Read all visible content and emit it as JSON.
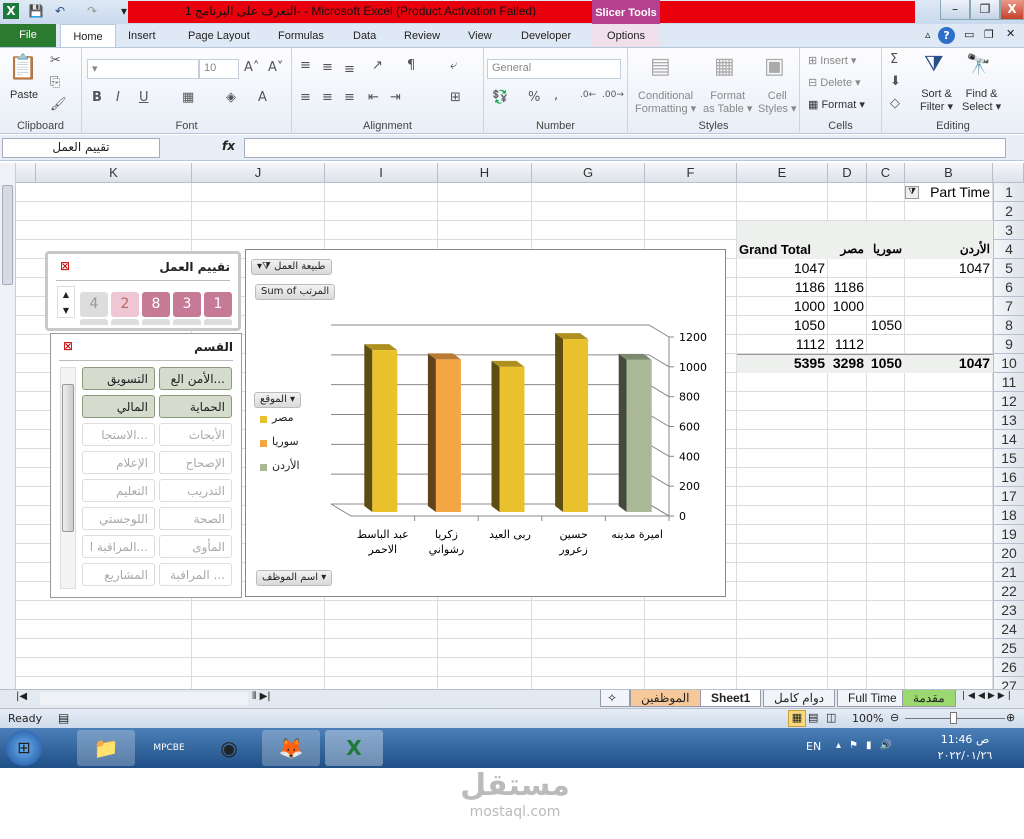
{
  "window": {
    "title": "التعرف على البرنامج 1-  -  Microsoft Excel (Product Activation Failed)",
    "context_tab": "Slicer Tools",
    "minimize": "–",
    "restore": "❐",
    "close": "X"
  },
  "ribbon": {
    "file_tab": "File",
    "tabs": [
      "Home",
      "Insert",
      "Page Layout",
      "Formulas",
      "Data",
      "Review",
      "View",
      "Developer",
      "Options"
    ],
    "groups": {
      "clipboard": "Clipboard",
      "font": "Font",
      "alignment": "Alignment",
      "number": "Number",
      "styles": "Styles",
      "cells": "Cells",
      "editing": "Editing"
    },
    "paste": "Paste",
    "font_size": "10",
    "number_format": "General",
    "conditional": [
      "Conditional",
      "Formatting ▾"
    ],
    "format_table": [
      "Format",
      "as Table ▾"
    ],
    "cell_styles": [
      "Cell",
      "Styles ▾"
    ],
    "insert": "Insert ▾",
    "delete": "Delete ▾",
    "format": "Format ▾",
    "sort": [
      "Sort &",
      "Filter ▾"
    ],
    "find": [
      "Find &",
      "Select ▾"
    ],
    "bold": "B",
    "italic": "I",
    "underline": "U",
    "percent": "%",
    "comma": ",",
    "autosum": "Σ"
  },
  "formula_bar": {
    "name_box": "تقييم العمل",
    "fx": "fx",
    "value": ""
  },
  "sheet": {
    "columns": [
      "K",
      "J",
      "I",
      "H",
      "G",
      "F",
      "E",
      "D",
      "C",
      "B"
    ],
    "rows": [
      "1",
      "2",
      "3",
      "4",
      "5",
      "6",
      "7",
      "8",
      "9",
      "10",
      "11",
      "12",
      "13",
      "14",
      "15",
      "16",
      "17",
      "18",
      "19",
      "20",
      "21",
      "22",
      "23",
      "24",
      "25",
      "26",
      "27"
    ],
    "filter_value": "Part Time",
    "pivot": {
      "headers": [
        "الأردن",
        "سوريا",
        "مصر",
        "Grand Total"
      ],
      "rows": [
        [
          "1047",
          "",
          "",
          "1047"
        ],
        [
          "",
          "",
          "1186",
          "1186"
        ],
        [
          "",
          "",
          "1000",
          "1000"
        ],
        [
          "",
          "1050",
          "",
          "1050"
        ],
        [
          "",
          "",
          "1112",
          "1112"
        ]
      ],
      "totals": [
        "1047",
        "1050",
        "3298",
        "5395"
      ]
    }
  },
  "slicer_rating": {
    "title": "تقييم العمل",
    "items": [
      {
        "label": "1",
        "state": "selected"
      },
      {
        "label": "3",
        "state": "selected"
      },
      {
        "label": "8",
        "state": "selected"
      },
      {
        "label": "2",
        "state": "light"
      },
      {
        "label": "4",
        "state": "nodata"
      }
    ]
  },
  "slicer_dept": {
    "title": "القسم",
    "items": [
      {
        "label": "الأمن الع...",
        "sel": true
      },
      {
        "label": "التسويق",
        "sel": true
      },
      {
        "label": "الحماية",
        "sel": true
      },
      {
        "label": "المالي",
        "sel": true
      },
      {
        "label": "الأبحاث",
        "sel": false
      },
      {
        "label": "الاستجا...",
        "sel": false
      },
      {
        "label": "الإصحاح",
        "sel": false
      },
      {
        "label": "الإعلام",
        "sel": false
      },
      {
        "label": "التدريب",
        "sel": false
      },
      {
        "label": "التعليم",
        "sel": false
      },
      {
        "label": "الصحة",
        "sel": false
      },
      {
        "label": "اللوجستي",
        "sel": false
      },
      {
        "label": "المأوى",
        "sel": false
      },
      {
        "label": "المراقبة ا...",
        "sel": false
      },
      {
        "label": "المراقبة ...",
        "sel": false
      },
      {
        "label": "المشاريع",
        "sel": false
      }
    ]
  },
  "chart_data": {
    "type": "bar",
    "style": "3d-column",
    "filter_button": "طبيعة العمل",
    "value_button": "Sum of المرتب",
    "legend_button": "الموقع",
    "axis_button": "اسم الموظف",
    "categories": [
      "اميرة مدينه",
      "حسين زعرور",
      "ربى العيد",
      "زكريا رشواني",
      "عبد الباسط الاحمر"
    ],
    "category_lines": [
      [
        "اميرة مدينه"
      ],
      [
        "حسين",
        "زعرور"
      ],
      [
        "ربى العيد"
      ],
      [
        "زكريا",
        "رشواني"
      ],
      [
        "عبد الباسط",
        "الاحمر"
      ]
    ],
    "series": [
      {
        "name": "مصر",
        "color": "#e9c12d",
        "values": [
          null,
          1186,
          1000,
          null,
          1112
        ]
      },
      {
        "name": "سوريا",
        "color": "#f4a544",
        "values": [
          null,
          null,
          null,
          1050,
          null
        ]
      },
      {
        "name": "الأردن",
        "color": "#a9b995",
        "values": [
          1047,
          null,
          null,
          null,
          null
        ]
      }
    ],
    "yticks": [
      "0",
      "200",
      "400",
      "600",
      "800",
      "1000",
      "1200"
    ],
    "ylim": [
      0,
      1200
    ],
    "grid": true,
    "legend": "left",
    "y_axis_side": "right",
    "x_order": "right-to-left"
  },
  "sheet_tabs": [
    "مقدمة",
    "Full Time",
    "دوام كامل",
    "Sheet1",
    "الموظفين"
  ],
  "status": {
    "ready": "Ready",
    "zoom": "100%"
  },
  "taskbar": {
    "lang": "EN",
    "time": "11:46 ص",
    "date": "٢٠٢٢/٠١/٢٦",
    "mpc": "MPCBE"
  },
  "watermark": {
    "arabic": "مستقل",
    "latin": "mostaql.com"
  }
}
